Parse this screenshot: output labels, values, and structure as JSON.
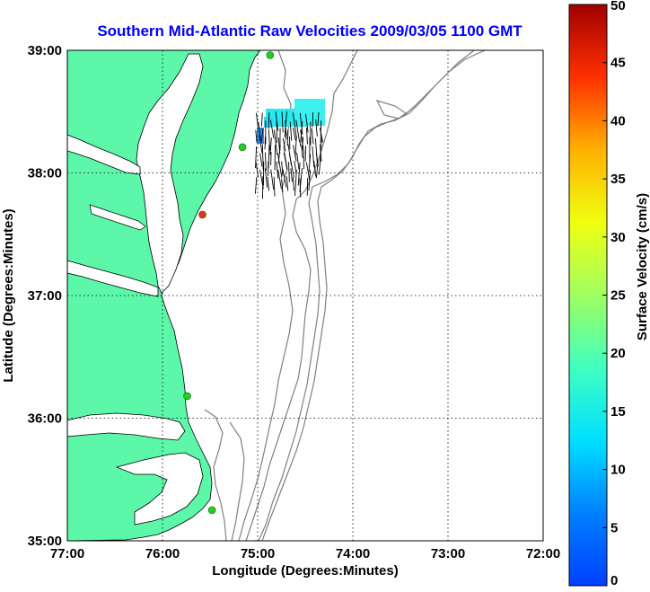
{
  "title": "Southern Mid-Atlantic Raw Velocities 2009/03/05 1100 GMT",
  "map": {
    "xlabel": "Longitude (Degrees:Minutes)",
    "ylabel": "Latitude (Degrees:Minutes)",
    "x_ticks": [
      "77:00",
      "76:00",
      "75:00",
      "74:00",
      "73:00",
      "72:00"
    ],
    "y_ticks": [
      "39:00",
      "38:00",
      "37:00",
      "36:00",
      "35:00"
    ],
    "lon_range": [
      -77,
      -72
    ],
    "lat_range": [
      35,
      39
    ],
    "land_color": "#5cf7a8",
    "water_color": "#ffffff",
    "grid": "dotted"
  },
  "stations": [
    {
      "lon": -74.87,
      "lat": 38.96,
      "color": "#20d020"
    },
    {
      "lon": -75.16,
      "lat": 38.21,
      "color": "#20d020"
    },
    {
      "lon": -75.58,
      "lat": 37.66,
      "color": "#e83020"
    },
    {
      "lon": -75.74,
      "lat": 36.18,
      "color": "#20d020"
    },
    {
      "lon": -75.48,
      "lat": 35.25,
      "color": "#20d020"
    }
  ],
  "colorbar": {
    "label": "Surface Velocity (cm/s)",
    "min": 0,
    "max": 50,
    "ticks": [
      "50",
      "45",
      "40",
      "35",
      "30",
      "25",
      "20",
      "15",
      "10",
      "5",
      "0"
    ]
  }
}
